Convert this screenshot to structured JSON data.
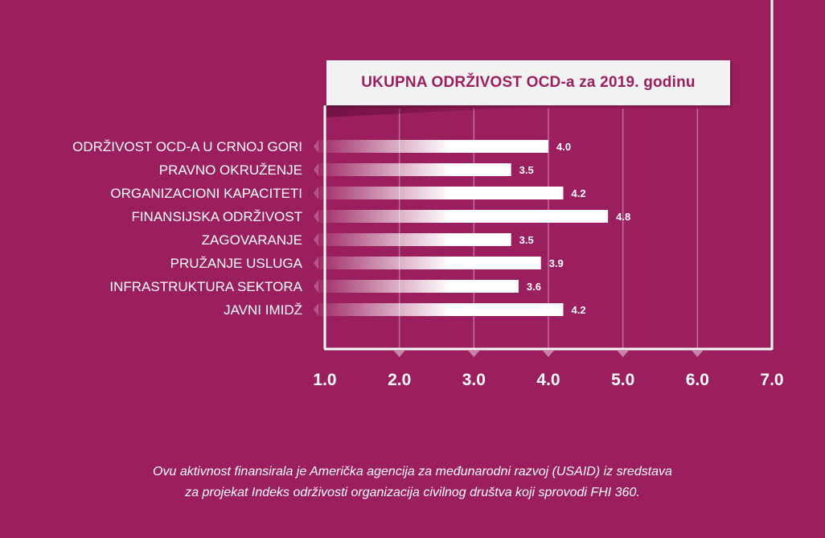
{
  "chart_data": {
    "type": "bar",
    "orientation": "horizontal",
    "title": "UKUPNA ODRŽIVOST OCD-a za 2019. godinu",
    "categories": [
      "ODRŽIVOST OCD-A U CRNOJ GORI",
      "PRAVNO OKRUŽENJE",
      "ORGANIZACIONI KAPACITETI",
      "FINANSIJSKA ODRŽIVOST",
      "ZAGOVARANJE",
      "PRUŽANJE USLUGA",
      "INFRASTRUKTURA SEKTORA",
      "JAVNI IMIDŽ"
    ],
    "values": [
      4.0,
      3.5,
      4.2,
      4.8,
      3.5,
      3.9,
      3.6,
      4.2
    ],
    "value_labels": [
      "4.0",
      "3.5",
      "4.2",
      "4.8",
      "3.5",
      "3.9",
      "3.6",
      "4.2"
    ],
    "xlim": [
      1.0,
      7.0
    ],
    "xticks": [
      "1.0",
      "2.0",
      "3.0",
      "4.0",
      "5.0",
      "6.0",
      "7.0"
    ],
    "grid": true,
    "colors": {
      "background": "#9b1f5e",
      "bar": "#ffffff",
      "title_text": "#9b1f5e",
      "title_box": "#f2f2f2"
    }
  },
  "footer": {
    "line1": "Ovu aktivnost finansirala je Američka agencija za međunarodni razvoj (USAID) iz sredstava",
    "line2": "za projekat Indeks održivosti organizacija civilnog društva koji sprovodi FHI 360."
  }
}
